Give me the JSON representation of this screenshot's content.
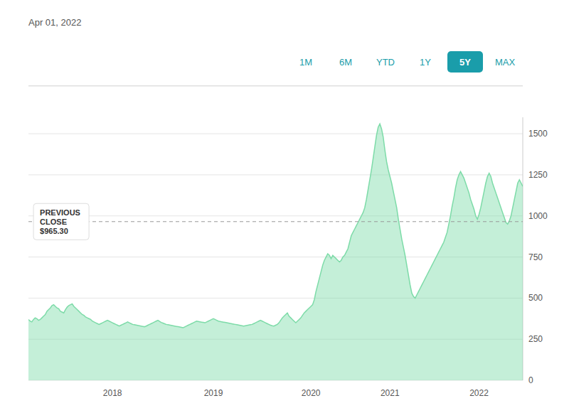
{
  "chart_data": {
    "type": "area",
    "subtitle": "Apr 01, 2022",
    "buttons": [
      "1M",
      "6M",
      "YTD",
      "1Y",
      "5Y",
      "MAX"
    ],
    "active_button": "5Y",
    "color": "#7ddba8",
    "ylim": [
      0,
      1600
    ],
    "yticks": [
      0,
      250,
      500,
      750,
      1000,
      1250,
      1500
    ],
    "grid": true,
    "annotations": [
      {
        "text": "PREVIOUS\nCLOSE\n$965.30",
        "y": 965.3
      }
    ],
    "categories": [
      null,
      null,
      null,
      null,
      null,
      null,
      null,
      null,
      null,
      null,
      null,
      null,
      null,
      null,
      null,
      null,
      null,
      null,
      null,
      null,
      null,
      null,
      null,
      null,
      null,
      null,
      null,
      null,
      null,
      null,
      null,
      null,
      null,
      null,
      null,
      null,
      null,
      null,
      null,
      null,
      null,
      null,
      null,
      null,
      null,
      null,
      null,
      null,
      null,
      null,
      "2018",
      null,
      null,
      null,
      null,
      null,
      null,
      null,
      null,
      null,
      null,
      null,
      null,
      null,
      null,
      null,
      null,
      null,
      null,
      null,
      null,
      null,
      null,
      null,
      null,
      null,
      null,
      null,
      null,
      null,
      null,
      null,
      null,
      null,
      null,
      null,
      null,
      null,
      null,
      null,
      null,
      null,
      null,
      null,
      null,
      null,
      null,
      null,
      null,
      null,
      null,
      null,
      null,
      null,
      null,
      null,
      null,
      null,
      null,
      null,
      "2019",
      null,
      null,
      null,
      null,
      null,
      null,
      null,
      null,
      null,
      null,
      null,
      null,
      null,
      null,
      null,
      null,
      null,
      null,
      null,
      null,
      null,
      null,
      null,
      null,
      null,
      null,
      null,
      null,
      null,
      null,
      null,
      null,
      null,
      null,
      null,
      null,
      null,
      null,
      null,
      null,
      null,
      null,
      null,
      null,
      null,
      null,
      null,
      null,
      null,
      null,
      null,
      null,
      null,
      null,
      null,
      null,
      null,
      "2020",
      null,
      null,
      null,
      null,
      null,
      null,
      null,
      null,
      null,
      null,
      null,
      null,
      null,
      null,
      null,
      null,
      null,
      null,
      null,
      null,
      null,
      null,
      null,
      null,
      null,
      null,
      null,
      null,
      null,
      null,
      null,
      null,
      null,
      null,
      null,
      null,
      null,
      null,
      null,
      null,
      null,
      null,
      null,
      null,
      null,
      null,
      "2021",
      null,
      null,
      null,
      null,
      null,
      null,
      null,
      null,
      null,
      null,
      null,
      null,
      null,
      null,
      null,
      null,
      null,
      null,
      null,
      null,
      null,
      null,
      null,
      null,
      null,
      null,
      null,
      null,
      null,
      null,
      null,
      null,
      null,
      null,
      null,
      null,
      null,
      null,
      null,
      null,
      null,
      null,
      null,
      null,
      null,
      null,
      null,
      null,
      null,
      null,
      null,
      null,
      "2022",
      null,
      null,
      null,
      null,
      null,
      null,
      null,
      null,
      null,
      null,
      null,
      null,
      null,
      null,
      null,
      null,
      null,
      null,
      null,
      null,
      null,
      null,
      null,
      null,
      null,
      null
    ],
    "values": [
      370,
      360,
      355,
      370,
      380,
      375,
      365,
      370,
      380,
      390,
      400,
      420,
      430,
      440,
      455,
      460,
      450,
      440,
      435,
      420,
      415,
      410,
      430,
      445,
      455,
      460,
      465,
      450,
      440,
      430,
      420,
      410,
      400,
      395,
      385,
      380,
      375,
      370,
      360,
      355,
      350,
      345,
      340,
      345,
      350,
      355,
      360,
      365,
      360,
      355,
      350,
      345,
      340,
      335,
      330,
      335,
      340,
      345,
      350,
      355,
      350,
      345,
      340,
      338,
      336,
      334,
      332,
      330,
      328,
      326,
      330,
      335,
      340,
      345,
      350,
      355,
      360,
      365,
      358,
      352,
      348,
      344,
      340,
      338,
      336,
      334,
      332,
      330,
      328,
      326,
      324,
      322,
      320,
      325,
      330,
      335,
      340,
      345,
      350,
      355,
      360,
      358,
      356,
      354,
      352,
      350,
      355,
      360,
      365,
      370,
      375,
      370,
      365,
      360,
      358,
      356,
      354,
      352,
      350,
      348,
      346,
      344,
      342,
      340,
      338,
      336,
      334,
      332,
      330,
      332,
      334,
      336,
      338,
      340,
      345,
      350,
      355,
      360,
      365,
      360,
      355,
      350,
      345,
      340,
      335,
      332,
      330,
      335,
      340,
      350,
      365,
      380,
      390,
      400,
      410,
      390,
      380,
      370,
      360,
      350,
      360,
      370,
      380,
      395,
      410,
      420,
      430,
      440,
      450,
      460,
      490,
      540,
      580,
      620,
      660,
      700,
      730,
      750,
      770,
      760,
      740,
      760,
      750,
      740,
      730,
      720,
      730,
      750,
      760,
      780,
      800,
      840,
      880,
      900,
      920,
      940,
      960,
      980,
      1000,
      1020,
      1050,
      1100,
      1160,
      1220,
      1280,
      1350,
      1420,
      1490,
      1540,
      1560,
      1530,
      1480,
      1400,
      1330,
      1280,
      1240,
      1200,
      1150,
      1100,
      1050,
      980,
      920,
      860,
      810,
      760,
      700,
      640,
      580,
      530,
      510,
      500,
      520,
      540,
      560,
      580,
      600,
      620,
      640,
      660,
      680,
      700,
      720,
      740,
      760,
      780,
      800,
      820,
      840,
      870,
      900,
      950,
      1000,
      1060,
      1110,
      1170,
      1220,
      1250,
      1270,
      1250,
      1230,
      1200,
      1170,
      1140,
      1100,
      1070,
      1040,
      1000,
      980,
      1010,
      1050,
      1100,
      1150,
      1200,
      1240,
      1260,
      1240,
      1200,
      1170,
      1140,
      1110,
      1080,
      1050,
      1020,
      990,
      960,
      950,
      970,
      1000,
      1050,
      1100,
      1150,
      1200,
      1220,
      1200,
      1180
    ]
  }
}
